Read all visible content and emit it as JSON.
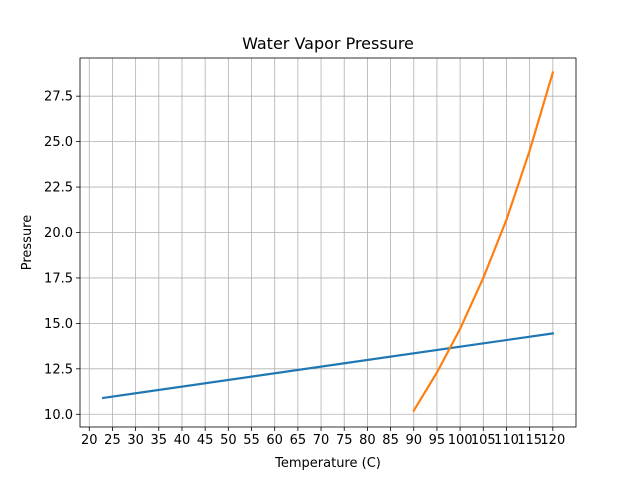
{
  "chart_data": {
    "type": "line",
    "title": "Water Vapor Pressure",
    "xlabel": "Temperature (C)",
    "ylabel": "Pressure",
    "xlim": [
      18,
      125
    ],
    "ylim": [
      9.3,
      29.6
    ],
    "grid": true,
    "x_ticks": [
      20,
      25,
      30,
      35,
      40,
      45,
      50,
      55,
      60,
      65,
      70,
      75,
      80,
      85,
      90,
      95,
      100,
      105,
      110,
      115,
      120
    ],
    "y_ticks": [
      10.0,
      12.5,
      15.0,
      17.5,
      20.0,
      22.5,
      25.0,
      27.5
    ],
    "y_tick_labels": [
      "10.0",
      "12.5",
      "15.0",
      "17.5",
      "20.0",
      "22.5",
      "25.0",
      "27.5"
    ],
    "colors": {
      "series_0": "#1f77b4",
      "series_1": "#ff7f0e",
      "grid": "#b0b0b0"
    },
    "series": [
      {
        "x": [
          23,
          120
        ],
        "y": [
          10.9,
          14.45
        ]
      },
      {
        "x": [
          90,
          95,
          100,
          105,
          110,
          115,
          120
        ],
        "y": [
          10.2,
          12.3,
          14.7,
          17.5,
          20.7,
          24.5,
          28.8
        ]
      }
    ]
  }
}
